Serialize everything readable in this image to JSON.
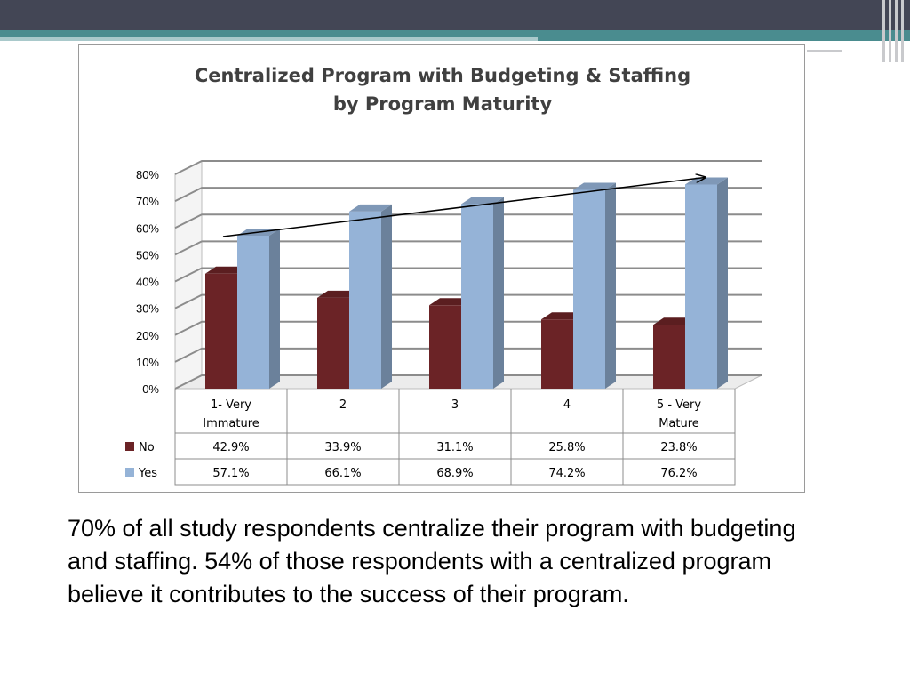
{
  "slide": {
    "caption": "70% of all study respondents centralize their program with budgeting and staffing. 54% of those respondents with a centralized program believe it contributes to the success of their program."
  },
  "chart_data": {
    "type": "bar",
    "title_line1": "Centralized Program with Budgeting & Staffing",
    "title_line2": "by Program Maturity",
    "categories": [
      [
        "1- Very",
        "Immature"
      ],
      [
        "2"
      ],
      [
        "3"
      ],
      [
        "4"
      ],
      [
        "5 - Very",
        "Mature"
      ]
    ],
    "series": [
      {
        "name": "No",
        "color": "#6b2326",
        "values": [
          42.9,
          33.9,
          31.1,
          25.8,
          23.8
        ],
        "labels": [
          "42.9%",
          "33.9%",
          "31.1%",
          "25.8%",
          "23.8%"
        ]
      },
      {
        "name": "Yes",
        "color": "#95b3d7",
        "values": [
          57.1,
          66.1,
          68.9,
          74.2,
          76.2
        ],
        "labels": [
          "57.1%",
          "66.1%",
          "68.9%",
          "74.2%",
          "76.2%"
        ]
      }
    ],
    "yticks": [
      "0%",
      "10%",
      "20%",
      "30%",
      "40%",
      "50%",
      "60%",
      "70%",
      "80%"
    ],
    "ylim": [
      0,
      80
    ],
    "grid": true,
    "trend_arrow": true,
    "legend": "data-table"
  }
}
